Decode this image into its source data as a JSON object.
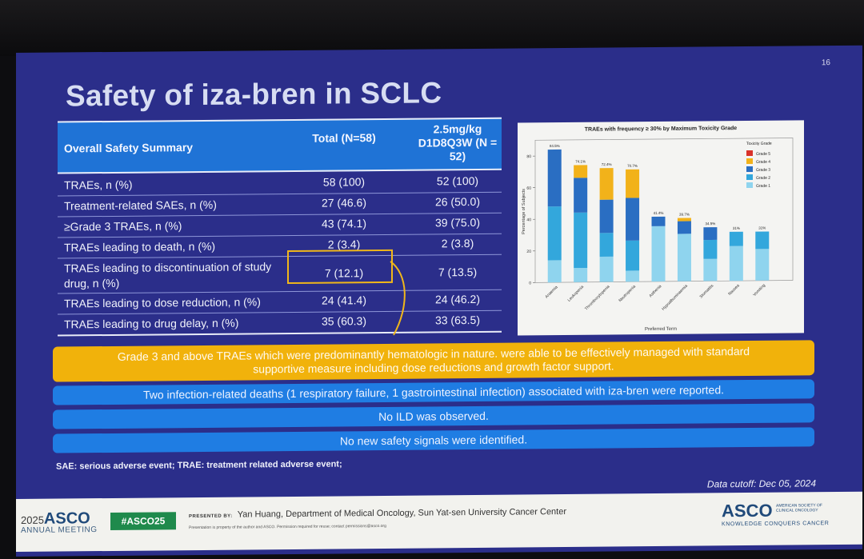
{
  "slide": {
    "number": "16",
    "title": "Safety of iza-bren in SCLC"
  },
  "table": {
    "headers": {
      "label": "Overall Safety Summary",
      "total": "Total (N=58)",
      "dose": "2.5mg/kg D1D8Q3W (N = 52)"
    },
    "rows": [
      {
        "label": "TRAEs, n (%)",
        "total": "58 (100)",
        "dose": "52 (100)"
      },
      {
        "label": "Treatment-related SAEs, n (%)",
        "total": "27 (46.6)",
        "dose": "26 (50.0)"
      },
      {
        "label": "≥Grade 3 TRAEs, n (%)",
        "total": "43 (74.1)",
        "dose": "39 (75.0)"
      },
      {
        "label": "TRAEs leading to death, n (%)",
        "total": "2 (3.4)",
        "dose": "2 (3.8)"
      },
      {
        "label": "TRAEs leading to discontinuation of study drug, n (%)",
        "total": "7 (12.1)",
        "dose": "7 (13.5)"
      },
      {
        "label": "TRAEs leading to dose reduction, n (%)",
        "total": "24 (41.4)",
        "dose": "24 (46.2)"
      },
      {
        "label": "TRAEs leading to drug delay, n (%)",
        "total": "35 (60.3)",
        "dose": "33 (63.5)"
      }
    ]
  },
  "chart_data": {
    "type": "bar",
    "stacked": true,
    "title": "TRAEs with frequency ≥ 30% by Maximum Toxicity Grade",
    "xlabel": "Preferred Term",
    "ylabel": "Percentage of Subjects",
    "ylim": [
      0,
      90
    ],
    "yticks": [
      0,
      20,
      40,
      60,
      80
    ],
    "categories": [
      "Anaemia",
      "Leukopenia",
      "Thrombocytopenia",
      "Neutropenia",
      "Asthenia",
      "Hypoalbuminaemia",
      "Stomatitis",
      "Nausea",
      "Vomiting"
    ],
    "totals": [
      "84.5%",
      "74.1%",
      "72.4%",
      "70.7%",
      "41.4%",
      "39.7%",
      "34.5%",
      "31%",
      "31%"
    ],
    "legend_title": "Toxicity Grade",
    "legend_position": "top-right",
    "series": [
      {
        "name": "Grade 1",
        "color": "#8fd4ee",
        "values": [
          14,
          9,
          16,
          7,
          35,
          30,
          14,
          22,
          20
        ]
      },
      {
        "name": "Grade 2",
        "color": "#33a7dc",
        "values": [
          34,
          35,
          15,
          19,
          0,
          0,
          12,
          9,
          11
        ]
      },
      {
        "name": "Grade 3",
        "color": "#2a6ec2",
        "values": [
          36,
          22,
          21,
          27,
          6,
          8,
          8,
          0,
          0
        ]
      },
      {
        "name": "Grade 4",
        "color": "#f2b21a",
        "values": [
          0,
          8,
          20,
          18,
          0,
          2,
          0,
          0,
          0
        ]
      },
      {
        "name": "Grade 5",
        "color": "#d9332b",
        "values": [
          0,
          0,
          0,
          0,
          0,
          0,
          0,
          0,
          0
        ]
      }
    ]
  },
  "banners": {
    "yellow_line1": "Grade 3 and above TRAEs which were predominantly hematologic in nature. were able to be effectively managed with standard",
    "yellow_line2": "supportive measure including dose reductions and growth factor support.",
    "blue": [
      "Two infection-related deaths (1 respiratory failure, 1 gastrointestinal infection) associated with iza-bren were reported.",
      "No ILD was observed.",
      "No new safety signals were identified."
    ]
  },
  "footnote": "SAE: serious adverse event; TRAE: treatment related adverse event;",
  "cutoff": "Data cutoff: Dec 05, 2024",
  "footer": {
    "year": "2025",
    "asco": "ASCO",
    "meeting": "ANNUAL MEETING",
    "hashtag": "#ASCO25",
    "presented_by_label": "PRESENTED BY:",
    "presenter": "Yan Huang, Department of Medical Oncology, Sun Yat-sen University Cancer Center",
    "presenter_note": "Presentation is property of the author and ASCO. Permission required for reuse; contact permissions@asco.org",
    "logo": "ASCO",
    "society": "AMERICAN SOCIETY OF CLINICAL ONCOLOGY",
    "tagline": "KNOWLEDGE CONQUERS CANCER"
  }
}
